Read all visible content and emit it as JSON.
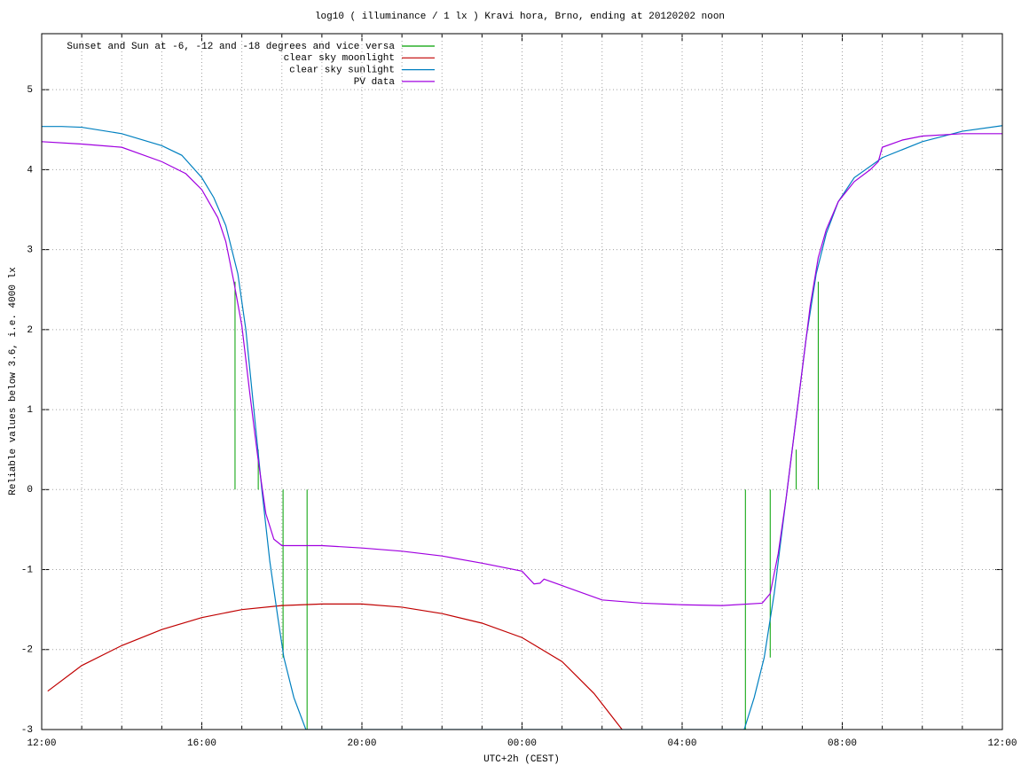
{
  "chart_data": {
    "type": "line",
    "title": "log10 ( illuminance / 1 lx ) Kravi hora, Brno, ending at 20120202 noon",
    "x_label": "UTC+2h (CEST)",
    "y_label": "Reliable values below 3.6, i.e. 4000 lx",
    "xlim": [
      0,
      24
    ],
    "ylim": [
      -3,
      5.7
    ],
    "xticks": [
      {
        "value": 0,
        "label": "12:00"
      },
      {
        "value": 4,
        "label": "16:00"
      },
      {
        "value": 8,
        "label": "20:00"
      },
      {
        "value": 12,
        "label": "00:00"
      },
      {
        "value": 16,
        "label": "04:00"
      },
      {
        "value": 20,
        "label": "08:00"
      },
      {
        "value": 24,
        "label": "12:00"
      }
    ],
    "xminorticks": [
      1,
      2,
      3,
      5,
      6,
      7,
      9,
      10,
      11,
      13,
      14,
      15,
      17,
      18,
      19,
      21,
      22,
      23
    ],
    "yticks": [
      -3,
      -2,
      -1,
      0,
      1,
      2,
      3,
      4,
      5
    ],
    "grid": true,
    "legend": "top-left",
    "series": [
      {
        "name": "Sunset and Sun at -6, -12 and -18 degrees and vice versa",
        "color": "#00a000",
        "style": "impulses",
        "x": [
          4.83,
          5.41,
          6.03,
          6.63,
          17.58,
          18.2,
          18.85,
          19.4
        ],
        "values": [
          2.6,
          0.5,
          -2.1,
          -3,
          -3,
          -2.1,
          0.5,
          2.6
        ]
      },
      {
        "name": "clear sky moonlight",
        "color": "#c00000",
        "style": "line",
        "x": [
          0.15,
          1,
          2,
          3,
          4,
          5,
          6,
          7,
          8,
          9,
          10,
          11,
          12,
          13,
          13.8,
          14.5
        ],
        "values": [
          -2.52,
          -2.2,
          -1.95,
          -1.75,
          -1.6,
          -1.5,
          -1.45,
          -1.43,
          -1.43,
          -1.47,
          -1.55,
          -1.67,
          -1.85,
          -2.15,
          -2.55,
          -3
        ]
      },
      {
        "name": "clear sky sunlight",
        "color": "#0080c0",
        "style": "line",
        "x": [
          0,
          0.5,
          1,
          2,
          3,
          3.5,
          4,
          4.3,
          4.6,
          4.9,
          5.1,
          5.3,
          5.5,
          5.7,
          5.9,
          6.05,
          6.3,
          6.6,
          17.55,
          17.8,
          18.05,
          18.3,
          18.5,
          18.7,
          18.9,
          19.1,
          19.35,
          19.6,
          19.9,
          20.3,
          21,
          22,
          23,
          24
        ],
        "values": [
          4.54,
          4.54,
          4.53,
          4.45,
          4.3,
          4.18,
          3.9,
          3.65,
          3.3,
          2.7,
          2.0,
          1.0,
          0.0,
          -0.9,
          -1.6,
          -2.1,
          -2.6,
          -3,
          -3,
          -2.6,
          -2.1,
          -1.3,
          -0.5,
          0.3,
          1.1,
          1.9,
          2.7,
          3.2,
          3.6,
          3.9,
          4.15,
          4.35,
          4.48,
          4.55
        ]
      },
      {
        "name": "PV data",
        "color": "#a000e0",
        "style": "line",
        "x": [
          0,
          1,
          2,
          3,
          3.6,
          4,
          4.4,
          4.6,
          4.8,
          5.0,
          5.2,
          5.4,
          5.6,
          5.8,
          6.0,
          7,
          8,
          9,
          10,
          11,
          12,
          12.15,
          12.3,
          12.45,
          12.55,
          13,
          14,
          15,
          16,
          17,
          18,
          18.2,
          18.4,
          18.6,
          18.8,
          19,
          19.2,
          19.4,
          19.6,
          19.9,
          20.3,
          20.7,
          20.9,
          21,
          21.5,
          22,
          23,
          24
        ],
        "values": [
          4.35,
          4.32,
          4.28,
          4.1,
          3.95,
          3.75,
          3.4,
          3.1,
          2.6,
          2.05,
          1.2,
          0.4,
          -0.3,
          -0.62,
          -0.7,
          -0.7,
          -0.73,
          -0.77,
          -0.83,
          -0.92,
          -1.02,
          -1.1,
          -1.18,
          -1.17,
          -1.12,
          -1.2,
          -1.38,
          -1.42,
          -1.44,
          -1.45,
          -1.42,
          -1.3,
          -0.8,
          -0.1,
          0.7,
          1.5,
          2.3,
          2.9,
          3.25,
          3.6,
          3.85,
          4.0,
          4.1,
          4.28,
          4.37,
          4.42,
          4.45,
          4.45
        ]
      }
    ]
  }
}
